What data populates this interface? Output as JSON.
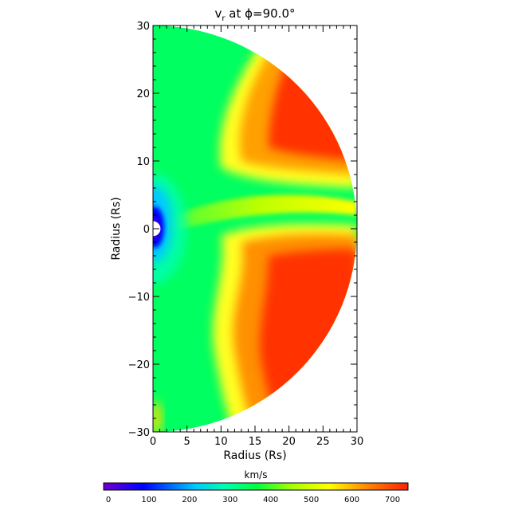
{
  "chart_data": {
    "type": "heatmap",
    "title_main": "v",
    "title_sub": "r",
    "title_rest": " at ϕ=90.0°",
    "xlabel": "Radius (Rs)",
    "ylabel": "Radius (Rs)",
    "xlim": [
      0,
      30
    ],
    "ylim": [
      -30,
      30
    ],
    "xticks": [
      "0",
      "5",
      "10",
      "15",
      "20",
      "25",
      "30"
    ],
    "yticks": [
      "30",
      "20",
      "10",
      "0",
      "−10",
      "−20",
      "−30"
    ],
    "xtick_values": [
      0,
      5,
      10,
      15,
      20,
      25,
      30
    ],
    "ytick_values": [
      30,
      20,
      10,
      0,
      -10,
      -20,
      -30
    ],
    "domain_outer_radius": 30,
    "inner_boundary_radius": 1,
    "colorbar": {
      "label": "km/s",
      "range": [
        0,
        750
      ],
      "ticks": [
        "0",
        "100",
        "200",
        "300",
        "400",
        "500",
        "600",
        "700"
      ],
      "tick_values": [
        0,
        100,
        200,
        300,
        400,
        500,
        600,
        700
      ],
      "colormap": [
        "#7000d0",
        "#0000ff",
        "#00a8ff",
        "#00ffc0",
        "#00ff40",
        "#a0ff00",
        "#ffff00",
        "#ffa000",
        "#ff5000",
        "#ff2000"
      ]
    }
  }
}
